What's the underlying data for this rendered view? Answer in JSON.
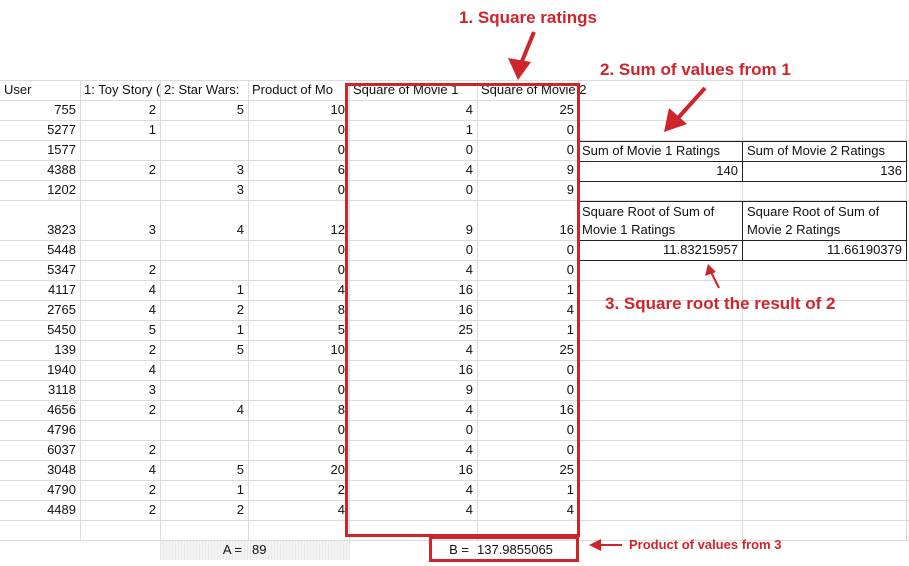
{
  "headers": [
    "User",
    "1: Toy Story (",
    "2: Star Wars:",
    "Product of Mo",
    "Square of Movie 1",
    "Square of Movie 2"
  ],
  "rows": [
    {
      "user": "755",
      "m1": "2",
      "m2": "5",
      "prod": "10",
      "sq1": "4",
      "sq2": "25"
    },
    {
      "user": "5277",
      "m1": "1",
      "m2": "",
      "prod": "0",
      "sq1": "1",
      "sq2": "0"
    },
    {
      "user": "1577",
      "m1": "",
      "m2": "",
      "prod": "0",
      "sq1": "0",
      "sq2": "0"
    },
    {
      "user": "4388",
      "m1": "2",
      "m2": "3",
      "prod": "6",
      "sq1": "4",
      "sq2": "9"
    },
    {
      "user": "1202",
      "m1": "",
      "m2": "3",
      "prod": "0",
      "sq1": "0",
      "sq2": "9"
    },
    {
      "user": "3823",
      "m1": "3",
      "m2": "4",
      "prod": "12",
      "sq1": "9",
      "sq2": "16"
    },
    {
      "user": "5448",
      "m1": "",
      "m2": "",
      "prod": "0",
      "sq1": "0",
      "sq2": "0"
    },
    {
      "user": "5347",
      "m1": "2",
      "m2": "",
      "prod": "0",
      "sq1": "4",
      "sq2": "0"
    },
    {
      "user": "4117",
      "m1": "4",
      "m2": "1",
      "prod": "4",
      "sq1": "16",
      "sq2": "1"
    },
    {
      "user": "2765",
      "m1": "4",
      "m2": "2",
      "prod": "8",
      "sq1": "16",
      "sq2": "4"
    },
    {
      "user": "5450",
      "m1": "5",
      "m2": "1",
      "prod": "5",
      "sq1": "25",
      "sq2": "1"
    },
    {
      "user": "139",
      "m1": "2",
      "m2": "5",
      "prod": "10",
      "sq1": "4",
      "sq2": "25"
    },
    {
      "user": "1940",
      "m1": "4",
      "m2": "",
      "prod": "0",
      "sq1": "16",
      "sq2": "0"
    },
    {
      "user": "3118",
      "m1": "3",
      "m2": "",
      "prod": "0",
      "sq1": "9",
      "sq2": "0"
    },
    {
      "user": "4656",
      "m1": "2",
      "m2": "4",
      "prod": "8",
      "sq1": "4",
      "sq2": "16"
    },
    {
      "user": "4796",
      "m1": "",
      "m2": "",
      "prod": "0",
      "sq1": "0",
      "sq2": "0"
    },
    {
      "user": "6037",
      "m1": "2",
      "m2": "",
      "prod": "0",
      "sq1": "4",
      "sq2": "0"
    },
    {
      "user": "3048",
      "m1": "4",
      "m2": "5",
      "prod": "20",
      "sq1": "16",
      "sq2": "25"
    },
    {
      "user": "4790",
      "m1": "2",
      "m2": "1",
      "prod": "2",
      "sq1": "4",
      "sq2": "1"
    },
    {
      "user": "4489",
      "m1": "2",
      "m2": "2",
      "prod": "4",
      "sq1": "4",
      "sq2": "4"
    }
  ],
  "sums": {
    "label1": "Sum of Movie 1 Ratings",
    "label2": "Sum of Movie 2 Ratings",
    "value1": "140",
    "value2": "136"
  },
  "roots": {
    "label1": "Square Root of Sum of Movie 1 Ratings",
    "label2": "Square Root of Sum of Movie 2 Ratings",
    "value1": "11.83215957",
    "value2": "11.66190379"
  },
  "bottom": {
    "a_label": "A =",
    "a_value": "89",
    "b_label": "B =",
    "b_value": "137.9855065"
  },
  "annotations": {
    "step1": "1. Square ratings",
    "step2": "2. Sum of values from 1",
    "step3": "3. Square root the result of 2",
    "product": "Product of  values from 3"
  },
  "colors": {
    "accent": "#d0242b"
  }
}
